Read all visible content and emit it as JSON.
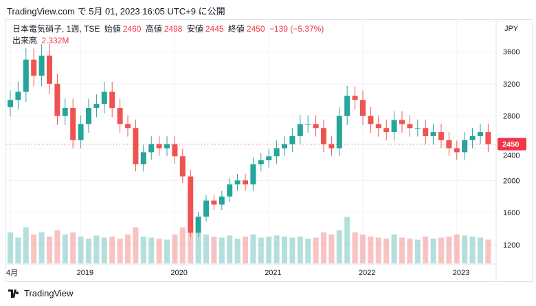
{
  "header": {
    "published": "TradingView.com で 5月 01, 2023 16:05 UTC+9 に公開"
  },
  "legend": {
    "symbol": "日本電気硝子, 1週, TSE",
    "open_label": "始値",
    "open": "2460",
    "high_label": "高値",
    "high": "2498",
    "low_label": "安値",
    "low": "2445",
    "close_label": "終値",
    "close": "2450",
    "change": "−139 (−5.37%)",
    "volume_label": "出来高",
    "volume": "2.332M"
  },
  "footer": {
    "brand": "TradingView"
  },
  "colors": {
    "up": "#26a69a",
    "down": "#ef5350",
    "last": "#f23645"
  },
  "chart_data": {
    "type": "candlestick",
    "currency": "JPY",
    "last_price": "2450",
    "ylim": [
      1000,
      3800
    ],
    "y_ticks": [
      "3600",
      "3200",
      "2800",
      "2400",
      "2000",
      "1600",
      "1200"
    ],
    "x_ticks": [
      {
        "label": "4月",
        "month_index": 0
      },
      {
        "label": "2019",
        "month_index": 9
      },
      {
        "label": "2020",
        "month_index": 21
      },
      {
        "label": "2021",
        "month_index": 33
      },
      {
        "label": "2022",
        "month_index": 45
      },
      {
        "label": "2023",
        "month_index": 57
      }
    ],
    "start": "2018-04",
    "monthly_close": [
      3000,
      3100,
      3500,
      3300,
      3550,
      3200,
      2800,
      2900,
      2500,
      2700,
      2900,
      2950,
      3100,
      2900,
      2700,
      2650,
      2200,
      2350,
      2450,
      2400,
      2450,
      2300,
      2050,
      1350,
      1550,
      1750,
      1700,
      1800,
      1950,
      2000,
      1950,
      2200,
      2250,
      2300,
      2400,
      2450,
      2550,
      2700,
      2700,
      2650,
      2450,
      2400,
      2800,
      3050,
      3000,
      2800,
      2700,
      2650,
      2600,
      2750,
      2700,
      2650,
      2650,
      2550,
      2600,
      2500,
      2400,
      2350,
      2500,
      2550,
      2600,
      2450
    ],
    "monthly_volume_m": [
      3,
      2.5,
      3.5,
      2.8,
      3,
      2.6,
      3.2,
      2.8,
      3,
      2.6,
      2.4,
      2.7,
      2.5,
      2.6,
      2.4,
      2.8,
      3.5,
      2.6,
      2.5,
      2.4,
      2.3,
      2.8,
      3.5,
      6,
      3.2,
      2.8,
      2.6,
      2.5,
      2.7,
      2.4,
      2.6,
      2.8,
      2.5,
      2.6,
      2.7,
      2.6,
      2.5,
      2.6,
      2.4,
      2.5,
      3,
      2.8,
      3.2,
      4.5,
      3,
      2.8,
      2.6,
      2.5,
      2.4,
      2.8,
      2.5,
      2.4,
      2.3,
      2.6,
      2.4,
      2.5,
      2.6,
      2.8,
      2.7,
      2.6,
      2.5,
      2.3
    ]
  }
}
